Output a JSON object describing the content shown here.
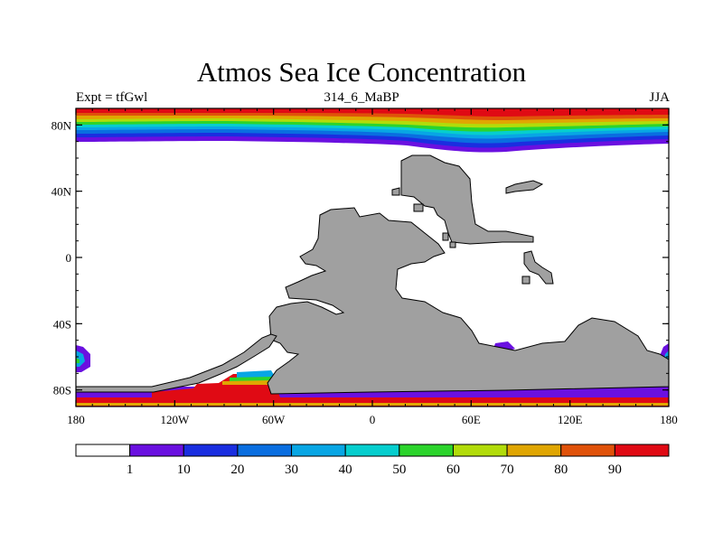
{
  "figure": {
    "title": "Atmos Sea Ice Concentration",
    "left_label": "Expt = tfGwl",
    "center_label": "314_6_MaBP",
    "right_label": "JJA"
  },
  "map": {
    "lon_range": [
      -180,
      180
    ],
    "lat_range": [
      -90,
      90
    ],
    "x_ticks": [
      {
        "value": -180,
        "label": "180"
      },
      {
        "value": -120,
        "label": "120W"
      },
      {
        "value": -60,
        "label": "60W"
      },
      {
        "value": 0,
        "label": "0"
      },
      {
        "value": 60,
        "label": "60E"
      },
      {
        "value": 120,
        "label": "120E"
      },
      {
        "value": 180,
        "label": "180"
      }
    ],
    "y_ticks": [
      {
        "value": 80,
        "label": "80N"
      },
      {
        "value": 40,
        "label": "40N"
      },
      {
        "value": 0,
        "label": "0"
      },
      {
        "value": -40,
        "label": "40S"
      },
      {
        "value": -80,
        "label": "80S"
      }
    ],
    "land_color": "#a0a0a0"
  },
  "colorbar": {
    "colors": [
      "#ffffff",
      "#6a10e0",
      "#1a2ee0",
      "#0a6ee0",
      "#08a6e4",
      "#06cece",
      "#2cd42c",
      "#b2dc0a",
      "#e0a602",
      "#e0520a",
      "#e00a14"
    ],
    "labels": [
      "1",
      "10",
      "20",
      "30",
      "40",
      "50",
      "60",
      "70",
      "80",
      "90"
    ]
  }
}
